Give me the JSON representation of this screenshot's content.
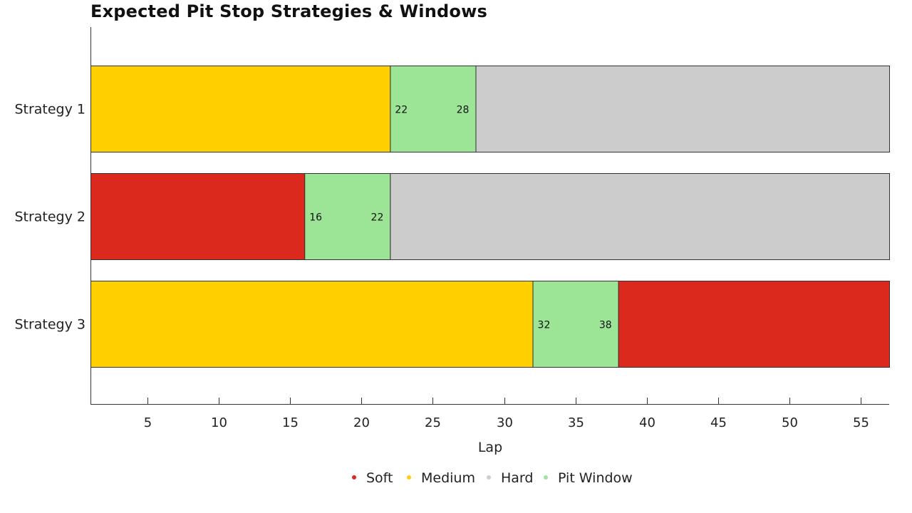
{
  "chart_data": {
    "type": "bar",
    "orientation": "horizontal-stacked",
    "title": "Expected Pit Stop Strategies & Windows",
    "xlabel": "Lap",
    "ylabel": "",
    "xlim": [
      1,
      57
    ],
    "xticks": [
      5,
      10,
      15,
      20,
      25,
      30,
      35,
      40,
      45,
      50,
      55
    ],
    "grid": false,
    "legend_position": "bottom",
    "compounds": [
      {
        "key": "soft",
        "name": "Soft",
        "color": "#dc291e"
      },
      {
        "key": "medium",
        "name": "Medium",
        "color": "#ffd000"
      },
      {
        "key": "hard",
        "name": "Hard",
        "color": "#cccccc"
      },
      {
        "key": "pit",
        "name": "Pit Window",
        "color": "#9ce597"
      }
    ],
    "strategies": [
      {
        "name": "Strategy 1",
        "segments": [
          {
            "compound": "medium",
            "start": 1,
            "end": 22
          },
          {
            "compound": "pit",
            "start": 22,
            "end": 28,
            "labels": [
              "22",
              "28"
            ]
          },
          {
            "compound": "hard",
            "start": 28,
            "end": 57
          }
        ]
      },
      {
        "name": "Strategy 2",
        "segments": [
          {
            "compound": "soft",
            "start": 1,
            "end": 16
          },
          {
            "compound": "pit",
            "start": 16,
            "end": 22,
            "labels": [
              "16",
              "22"
            ]
          },
          {
            "compound": "hard",
            "start": 22,
            "end": 57
          }
        ]
      },
      {
        "name": "Strategy 3",
        "segments": [
          {
            "compound": "medium",
            "start": 1,
            "end": 32
          },
          {
            "compound": "pit",
            "start": 32,
            "end": 38,
            "labels": [
              "32",
              "38"
            ]
          },
          {
            "compound": "soft",
            "start": 38,
            "end": 57
          }
        ]
      }
    ]
  }
}
